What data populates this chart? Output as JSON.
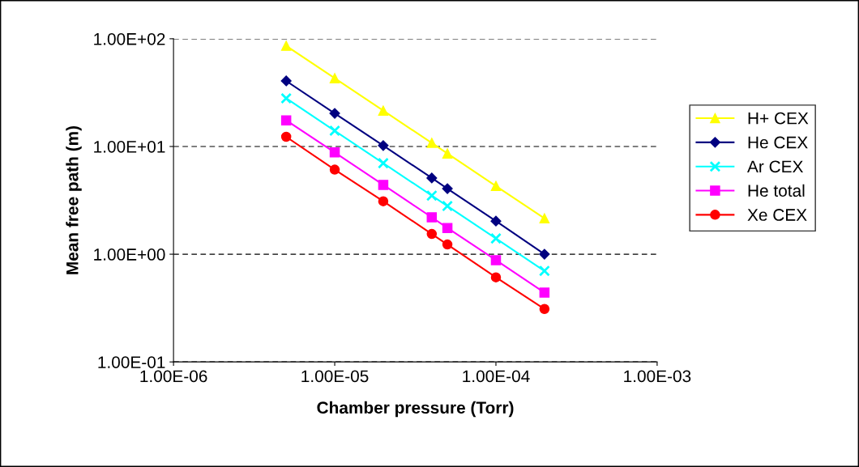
{
  "chart_data": {
    "type": "line",
    "xlabel": "Chamber pressure (Torr)",
    "ylabel": "Mean free path (m)",
    "log": "xy",
    "grid": "y",
    "legend": "right",
    "xlim": [
      1e-06,
      0.001
    ],
    "ylim": [
      0.1,
      100
    ],
    "xticks": [
      {
        "value": 1e-06,
        "label": "1.00E-06"
      },
      {
        "value": 1e-05,
        "label": "1.00E-05"
      },
      {
        "value": 0.0001,
        "label": "1.00E-04"
      },
      {
        "value": 0.001,
        "label": "1.00E-03"
      }
    ],
    "yticks": [
      {
        "value": 0.1,
        "label": "1.00E-01"
      },
      {
        "value": 1,
        "label": "1.00E+00"
      },
      {
        "value": 10,
        "label": "1.00E+01"
      },
      {
        "value": 100,
        "label": "1.00E+02"
      }
    ],
    "x": [
      5e-06,
      1e-05,
      2e-05,
      4e-05,
      5e-05,
      0.0001,
      0.0002
    ],
    "series": [
      {
        "name": "H+ CEX",
        "color": "#ffff00",
        "marker": "triangle",
        "values": [
          86,
          43,
          21.5,
          10.8,
          8.6,
          4.3,
          2.15
        ]
      },
      {
        "name": "He CEX",
        "color": "#000080",
        "marker": "diamond",
        "values": [
          40.6,
          20.3,
          10.2,
          5.1,
          4.06,
          2.03,
          1.0
        ]
      },
      {
        "name": "Ar CEX",
        "color": "#00ffff",
        "marker": "cross",
        "values": [
          28,
          14,
          7,
          3.5,
          2.8,
          1.4,
          0.7
        ]
      },
      {
        "name": "He total",
        "color": "#ff00ff",
        "marker": "square",
        "values": [
          17.5,
          8.8,
          4.4,
          2.2,
          1.75,
          0.88,
          0.44
        ]
      },
      {
        "name": "Xe CEX",
        "color": "#ff0000",
        "marker": "circle",
        "values": [
          12.3,
          6.1,
          3.1,
          1.54,
          1.23,
          0.61,
          0.31
        ]
      }
    ]
  }
}
